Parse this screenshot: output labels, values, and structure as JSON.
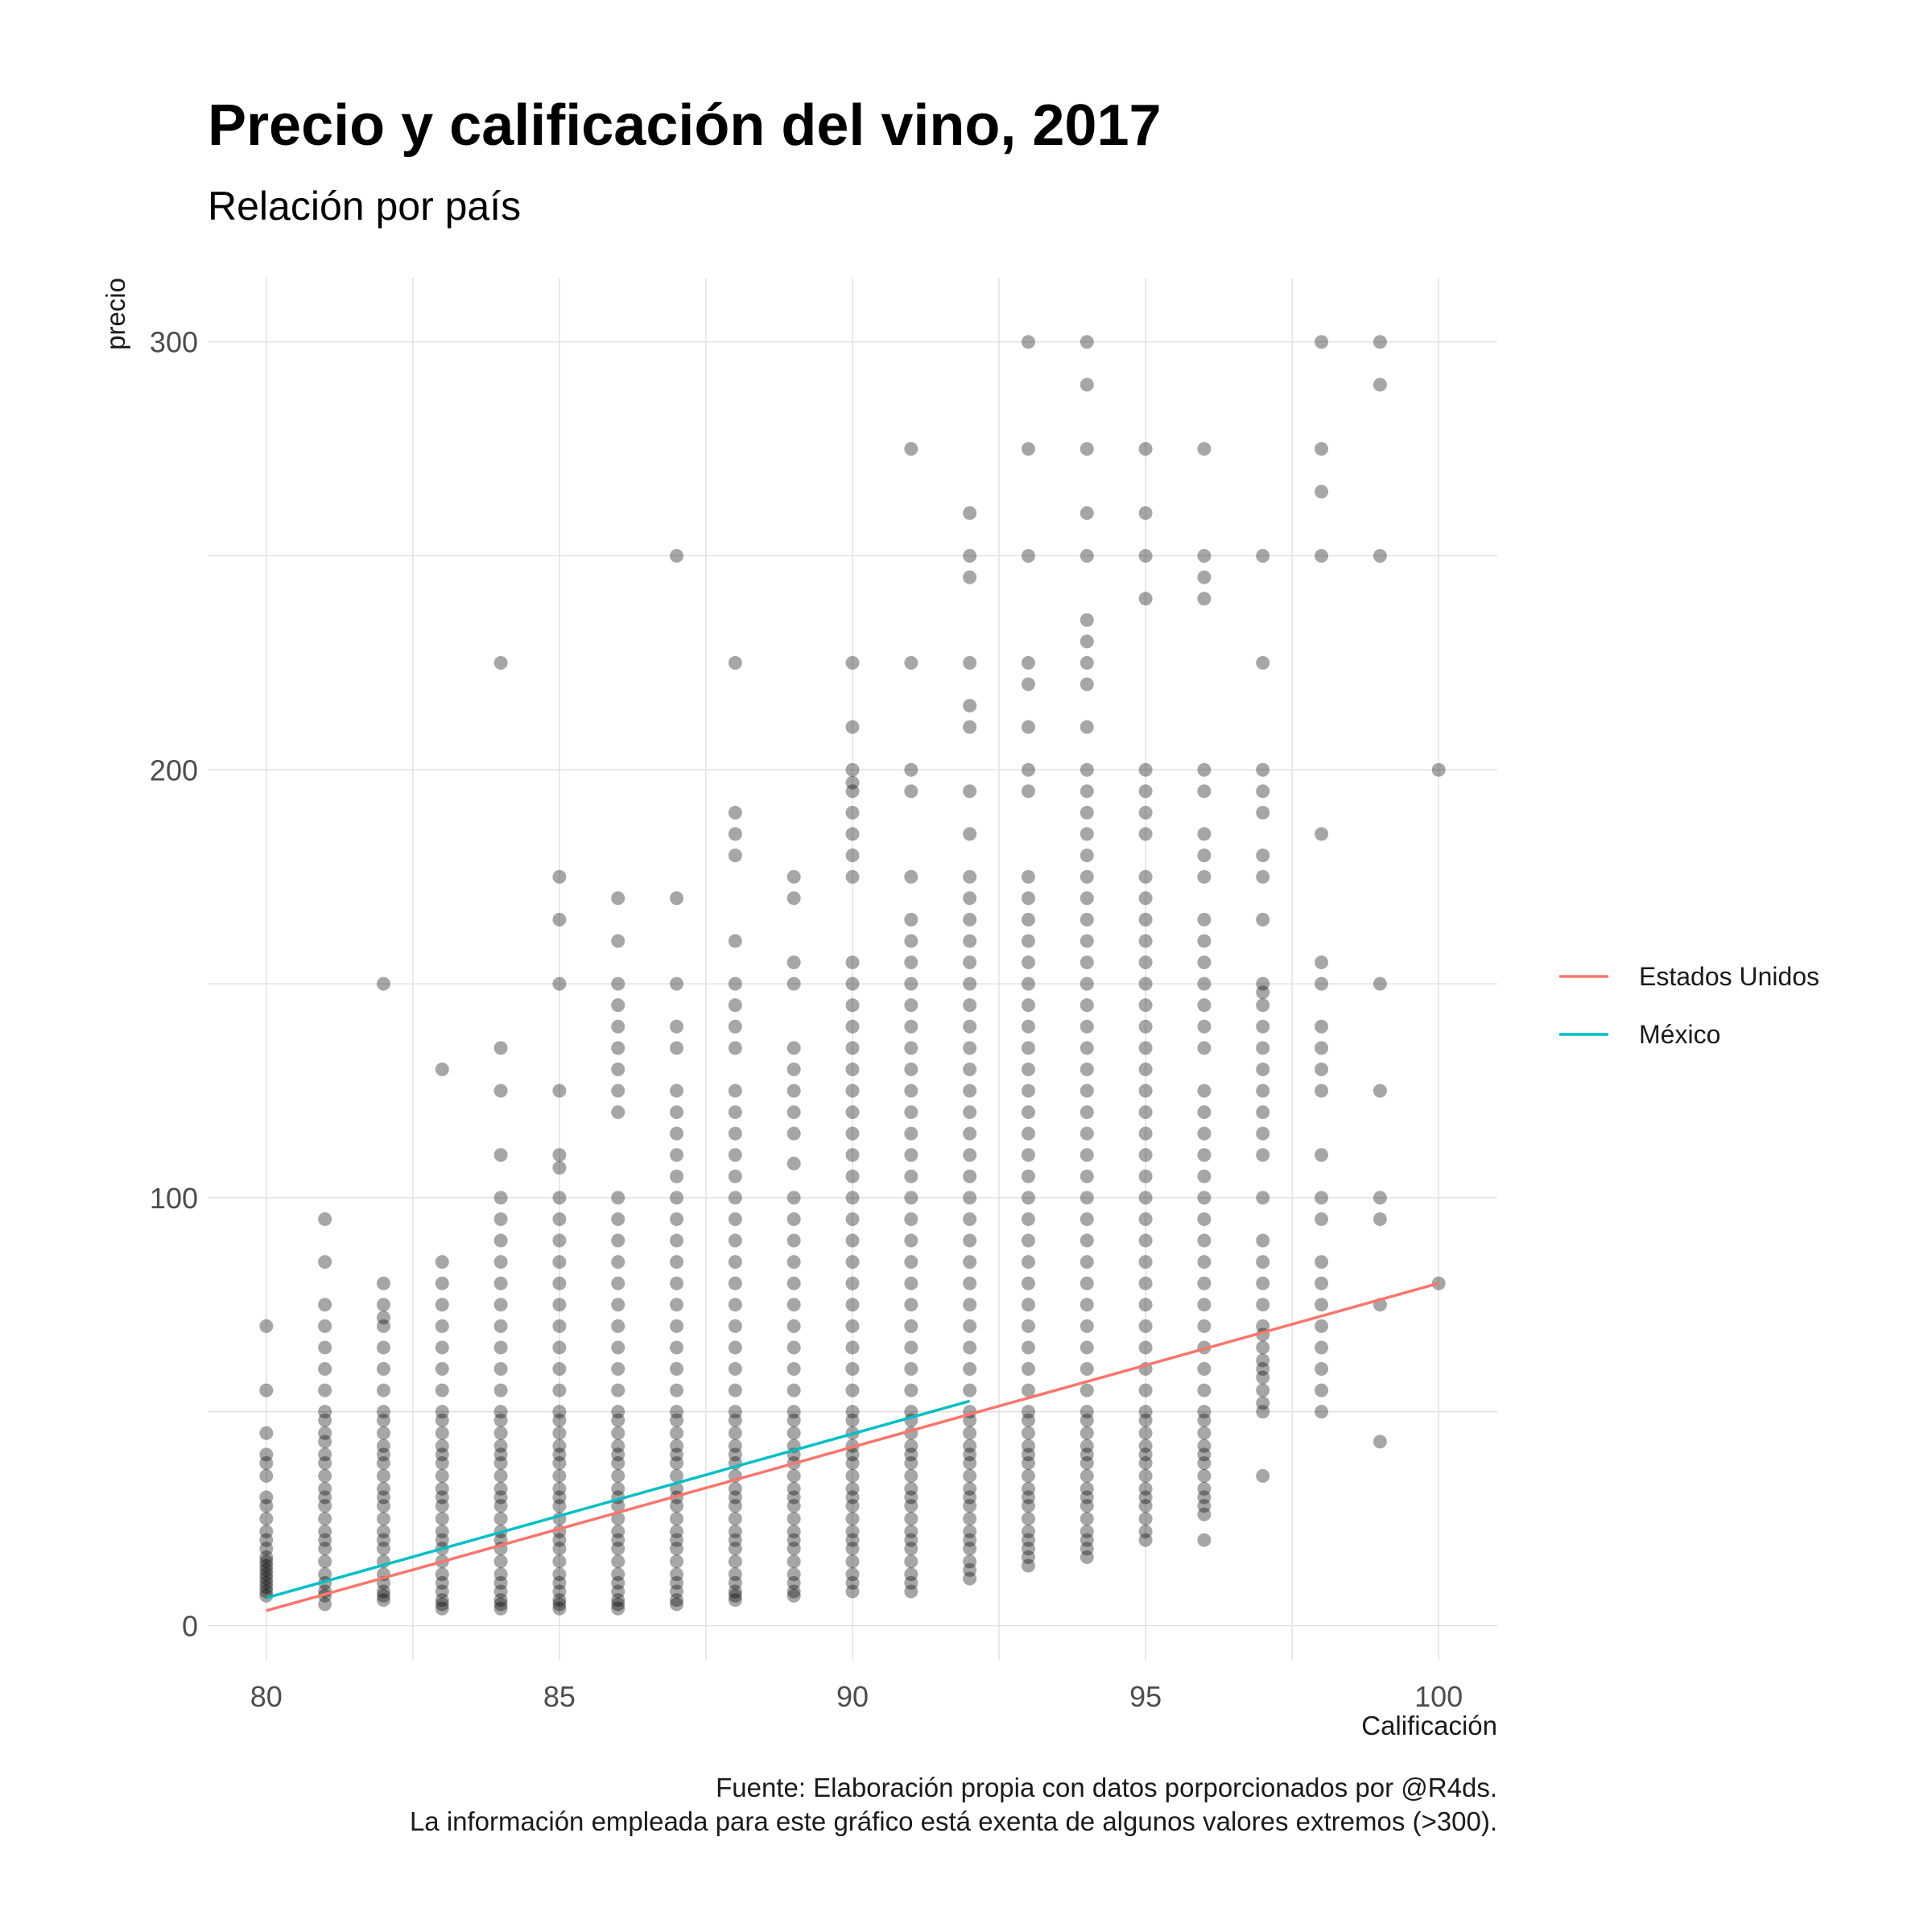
{
  "chart_data": {
    "type": "scatter",
    "title": "Precio y calificación del vino, 2017",
    "subtitle": "Relación por país",
    "xlabel": "Calificación",
    "ylabel": "precio",
    "xlim": [
      79,
      101
    ],
    "ylim": [
      -8,
      315
    ],
    "x_ticks": [
      80,
      85,
      90,
      95,
      100
    ],
    "y_ticks": [
      0,
      100,
      200,
      300
    ],
    "grid": true,
    "legend_position": "right",
    "caption": [
      "Fuente: Elaboración propia con datos porporcionados por @R4ds.",
      "La información empleada para este gráfico está exenta de algunos valores extremos (>300)."
    ],
    "point_color": "#000000",
    "point_alpha": 0.35,
    "points": [
      {
        "x": 80,
        "y": [
          7,
          40,
          70,
          55,
          45,
          38,
          35,
          30,
          28,
          25,
          22,
          20,
          18,
          16,
          15,
          14,
          13,
          12,
          11,
          10,
          9,
          8
        ]
      },
      {
        "x": 81,
        "y": [
          5,
          95,
          85,
          75,
          70,
          65,
          60,
          55,
          50,
          48,
          45,
          43,
          40,
          38,
          35,
          32,
          30,
          28,
          25,
          22,
          20,
          18,
          15,
          12,
          10,
          8,
          7
        ]
      },
      {
        "x": 82,
        "y": [
          6,
          150,
          80,
          75,
          72,
          70,
          65,
          60,
          55,
          50,
          48,
          45,
          42,
          40,
          38,
          35,
          32,
          30,
          28,
          25,
          22,
          20,
          18,
          15,
          12,
          10,
          8,
          7
        ]
      },
      {
        "x": 83,
        "y": [
          4,
          130,
          85,
          80,
          75,
          70,
          65,
          60,
          55,
          50,
          48,
          45,
          42,
          40,
          38,
          35,
          32,
          30,
          28,
          25,
          22,
          20,
          18,
          15,
          12,
          10,
          8,
          6,
          5
        ]
      },
      {
        "x": 84,
        "y": [
          4,
          225,
          135,
          125,
          110,
          100,
          95,
          90,
          85,
          80,
          75,
          70,
          65,
          60,
          55,
          50,
          48,
          45,
          42,
          40,
          38,
          35,
          32,
          30,
          28,
          25,
          22,
          20,
          18,
          15,
          12,
          10,
          8,
          6,
          5
        ]
      },
      {
        "x": 85,
        "y": [
          4,
          175,
          165,
          150,
          125,
          110,
          107,
          100,
          95,
          90,
          85,
          80,
          75,
          70,
          65,
          60,
          55,
          50,
          48,
          45,
          42,
          40,
          38,
          35,
          32,
          30,
          28,
          25,
          22,
          20,
          18,
          15,
          12,
          10,
          8,
          6,
          5
        ]
      },
      {
        "x": 86,
        "y": [
          4,
          170,
          160,
          150,
          145,
          140,
          135,
          130,
          125,
          120,
          100,
          95,
          90,
          85,
          80,
          75,
          70,
          65,
          60,
          55,
          50,
          48,
          45,
          42,
          40,
          38,
          35,
          32,
          30,
          28,
          25,
          22,
          20,
          18,
          15,
          12,
          10,
          8,
          6,
          5
        ]
      },
      {
        "x": 87,
        "y": [
          5,
          250,
          170,
          150,
          140,
          135,
          125,
          120,
          115,
          110,
          105,
          100,
          95,
          90,
          85,
          80,
          75,
          70,
          65,
          60,
          55,
          50,
          48,
          45,
          42,
          40,
          38,
          35,
          32,
          30,
          28,
          25,
          22,
          20,
          18,
          15,
          12,
          10,
          8,
          6
        ]
      },
      {
        "x": 88,
        "y": [
          6,
          225,
          190,
          185,
          180,
          160,
          150,
          145,
          140,
          135,
          125,
          120,
          115,
          110,
          105,
          100,
          95,
          90,
          85,
          80,
          75,
          70,
          65,
          60,
          55,
          50,
          48,
          45,
          42,
          40,
          38,
          35,
          32,
          30,
          28,
          25,
          22,
          20,
          18,
          15,
          12,
          10,
          8,
          7
        ]
      },
      {
        "x": 89,
        "y": [
          7,
          175,
          170,
          155,
          150,
          135,
          130,
          125,
          120,
          115,
          108,
          100,
          95,
          90,
          85,
          80,
          75,
          70,
          65,
          60,
          55,
          50,
          48,
          45,
          42,
          40,
          38,
          35,
          32,
          30,
          28,
          25,
          22,
          20,
          18,
          15,
          12,
          10,
          8
        ]
      },
      {
        "x": 90,
        "y": [
          8,
          225,
          210,
          200,
          197,
          195,
          190,
          185,
          180,
          175,
          155,
          150,
          145,
          140,
          135,
          130,
          125,
          120,
          115,
          110,
          105,
          100,
          95,
          90,
          85,
          80,
          75,
          70,
          65,
          60,
          55,
          50,
          48,
          45,
          42,
          40,
          38,
          35,
          32,
          30,
          28,
          25,
          22,
          20,
          18,
          15,
          12,
          10
        ]
      },
      {
        "x": 91,
        "y": [
          8,
          275,
          225,
          200,
          195,
          175,
          165,
          160,
          155,
          150,
          145,
          140,
          135,
          130,
          125,
          120,
          115,
          110,
          105,
          100,
          95,
          90,
          85,
          80,
          75,
          70,
          65,
          60,
          55,
          50,
          48,
          45,
          42,
          40,
          38,
          35,
          32,
          30,
          28,
          25,
          22,
          20,
          18,
          15,
          12,
          10
        ]
      },
      {
        "x": 92,
        "y": [
          11,
          260,
          250,
          245,
          225,
          215,
          210,
          195,
          185,
          175,
          170,
          165,
          160,
          155,
          150,
          145,
          140,
          135,
          130,
          125,
          120,
          115,
          110,
          105,
          100,
          95,
          90,
          85,
          80,
          75,
          70,
          65,
          60,
          55,
          50,
          48,
          45,
          42,
          40,
          38,
          35,
          32,
          30,
          28,
          25,
          22,
          20,
          18,
          15,
          13
        ]
      },
      {
        "x": 93,
        "y": [
          14,
          300,
          275,
          250,
          225,
          220,
          210,
          200,
          195,
          175,
          170,
          165,
          160,
          155,
          150,
          145,
          140,
          135,
          130,
          125,
          120,
          115,
          110,
          105,
          100,
          95,
          90,
          85,
          80,
          75,
          70,
          65,
          60,
          55,
          50,
          48,
          45,
          42,
          40,
          38,
          35,
          32,
          30,
          28,
          25,
          22,
          20,
          18,
          16
        ]
      },
      {
        "x": 94,
        "y": [
          16,
          300,
          290,
          275,
          260,
          250,
          235,
          230,
          225,
          220,
          210,
          200,
          195,
          190,
          185,
          180,
          175,
          170,
          165,
          160,
          155,
          150,
          145,
          140,
          135,
          130,
          125,
          120,
          115,
          110,
          105,
          100,
          95,
          90,
          85,
          80,
          75,
          70,
          65,
          60,
          55,
          50,
          48,
          45,
          42,
          40,
          38,
          35,
          32,
          30,
          28,
          25,
          22,
          20,
          18
        ]
      },
      {
        "x": 95,
        "y": [
          20,
          275,
          260,
          250,
          240,
          200,
          195,
          190,
          185,
          175,
          170,
          165,
          160,
          155,
          150,
          145,
          140,
          135,
          130,
          125,
          120,
          115,
          110,
          105,
          100,
          95,
          90,
          85,
          80,
          75,
          70,
          65,
          60,
          55,
          50,
          48,
          45,
          42,
          40,
          38,
          35,
          32,
          30,
          28,
          25,
          22
        ]
      },
      {
        "x": 96,
        "y": [
          20,
          275,
          250,
          245,
          240,
          200,
          195,
          185,
          180,
          175,
          165,
          160,
          155,
          150,
          145,
          140,
          135,
          125,
          120,
          115,
          110,
          105,
          100,
          95,
          90,
          85,
          80,
          75,
          70,
          65,
          60,
          55,
          50,
          48,
          45,
          42,
          40,
          38,
          35,
          32,
          30,
          28,
          26
        ]
      },
      {
        "x": 97,
        "y": [
          35,
          250,
          225,
          200,
          195,
          190,
          180,
          175,
          165,
          150,
          148,
          145,
          140,
          135,
          130,
          125,
          120,
          115,
          110,
          100,
          90,
          85,
          80,
          75,
          70,
          68,
          65,
          62,
          60,
          58,
          55,
          52,
          50
        ]
      },
      {
        "x": 98,
        "y": [
          50,
          300,
          275,
          265,
          250,
          185,
          155,
          150,
          140,
          135,
          130,
          125,
          110,
          100,
          95,
          85,
          80,
          75,
          70,
          65,
          60,
          55
        ]
      },
      {
        "x": 99,
        "y": [
          43,
          300,
          290,
          250,
          150,
          125,
          100,
          95,
          75
        ]
      },
      {
        "x": 100,
        "y": [
          80,
          200
        ]
      }
    ],
    "series": [
      {
        "name": "Estados Unidos",
        "color": "#F8766D",
        "x": [
          80,
          100
        ],
        "y": [
          3.5,
          80
        ]
      },
      {
        "name": "México",
        "color": "#00BFC4",
        "x": [
          80,
          92
        ],
        "y": [
          6.5,
          52.5
        ]
      }
    ]
  }
}
